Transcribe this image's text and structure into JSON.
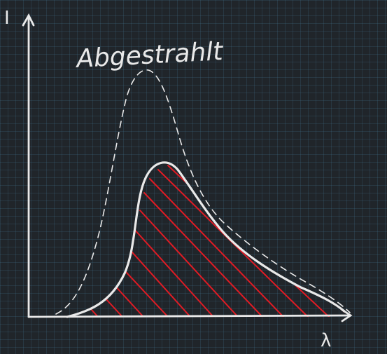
{
  "labels": {
    "y_axis": "I",
    "x_axis": "λ",
    "dashed_curve": "Abgestrahlt"
  },
  "colors": {
    "background": "#20252a",
    "grid": "#3d6677",
    "stroke": "#e9e9e9",
    "hatch": "#e01b24"
  }
}
